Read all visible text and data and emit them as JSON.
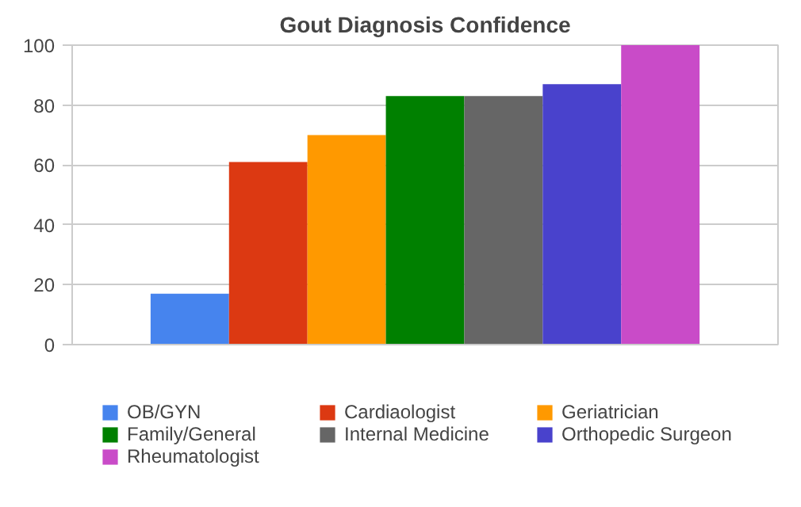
{
  "chart_data": {
    "type": "bar",
    "title": "Gout Diagnosis Confidence",
    "categories": [
      null
    ],
    "series": [
      {
        "name": "OB/GYN",
        "color": "#4684ee",
        "values": [
          17
        ]
      },
      {
        "name": "Cardiaologist",
        "color": "#dc3912",
        "values": [
          61
        ]
      },
      {
        "name": "Geriatrician",
        "color": "#ff9900",
        "values": [
          70
        ]
      },
      {
        "name": "Family/General",
        "color": "#008000",
        "values": [
          83
        ]
      },
      {
        "name": "Internal Medicine",
        "color": "#666666",
        "values": [
          83
        ]
      },
      {
        "name": "Orthopedic Surgeon",
        "color": "#4942cc",
        "values": [
          87
        ]
      },
      {
        "name": "Rheumatologist",
        "color": "#c94bc8",
        "values": [
          100
        ]
      }
    ],
    "ylim": [
      0,
      100
    ],
    "yticks": [
      0,
      20,
      40,
      60,
      80,
      100
    ],
    "grid": "y",
    "legend": "bottom"
  }
}
